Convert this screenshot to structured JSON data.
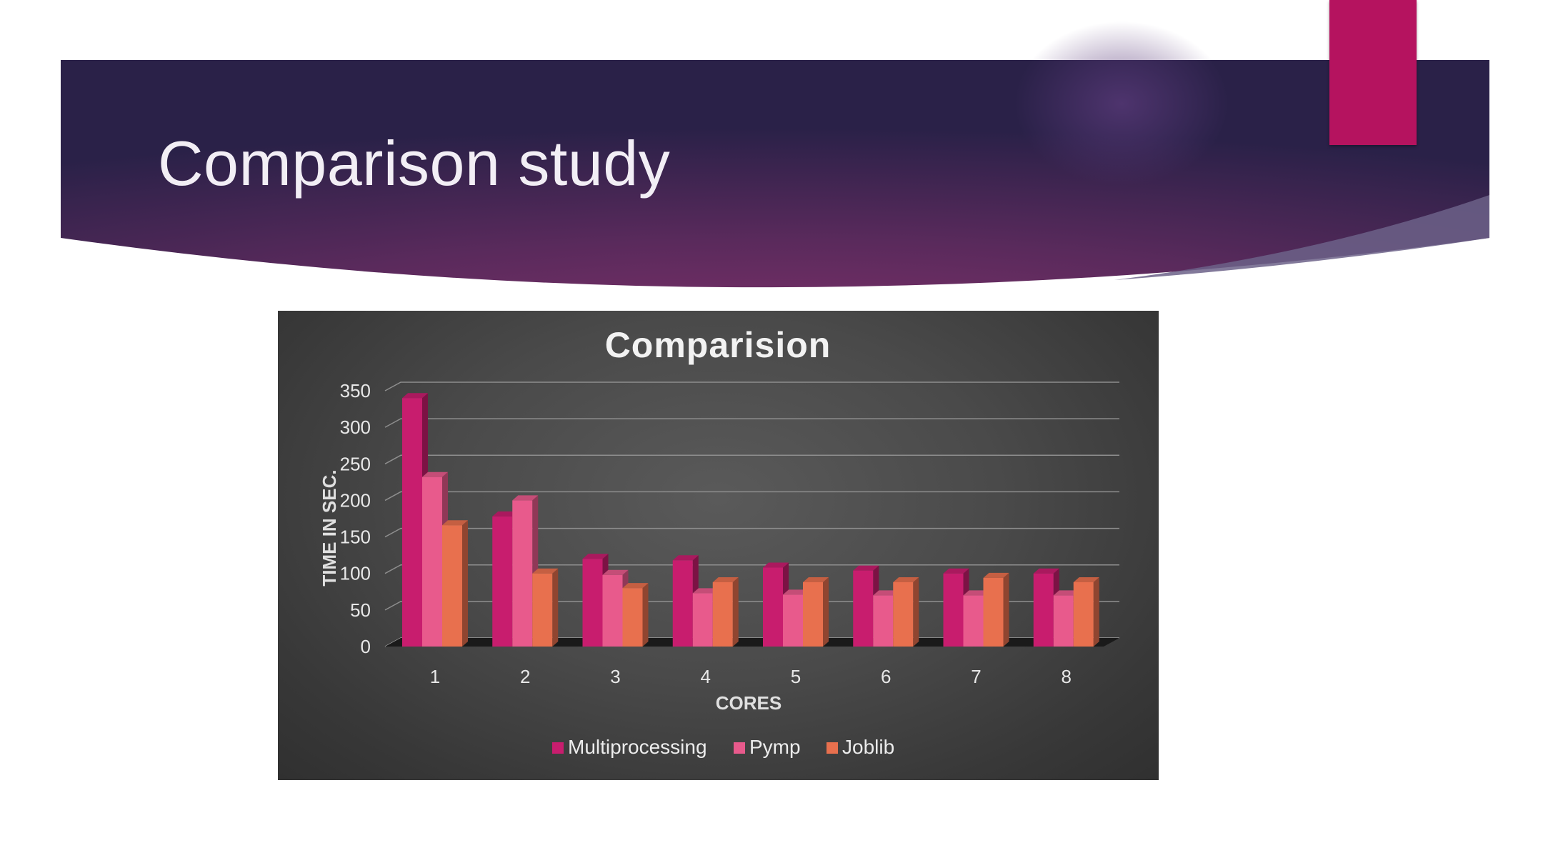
{
  "slide": {
    "title": "Comparison study",
    "accent_color": "#b5135f"
  },
  "chart_data": {
    "type": "bar",
    "title": "Comparision",
    "xlabel": "CORES",
    "ylabel": "TIME IN SEC.",
    "ylim": [
      0,
      350
    ],
    "yticks": [
      "0",
      "50",
      "100",
      "150",
      "200",
      "250",
      "300",
      "350"
    ],
    "categories": [
      "1",
      "2",
      "3",
      "4",
      "5",
      "6",
      "7",
      "8"
    ],
    "series": [
      {
        "name": "Multiprocessing",
        "color": "#c81d6e",
        "values": [
          340,
          178,
          120,
          118,
          108,
          104,
          100,
          100
        ]
      },
      {
        "name": "Pymp",
        "color": "#e85a8c",
        "values": [
          232,
          200,
          98,
          73,
          71,
          70,
          70,
          70
        ]
      },
      {
        "name": "Joblib",
        "color": "#e8704e",
        "values": [
          166,
          100,
          80,
          88,
          88,
          88,
          94,
          88
        ]
      }
    ],
    "grid": true,
    "legend_position": "bottom"
  }
}
